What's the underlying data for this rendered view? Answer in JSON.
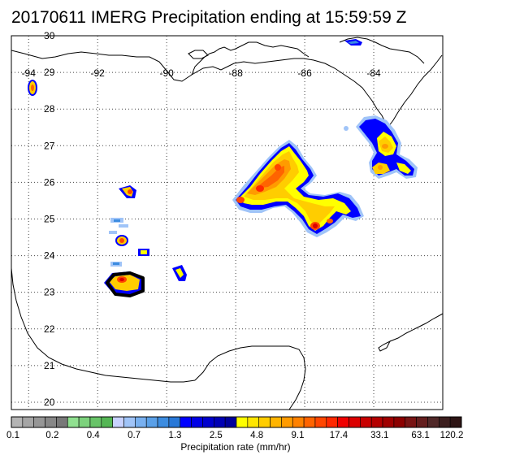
{
  "title": "20170611 IMERG Precipitation ending at 15:59:59 Z",
  "map": {
    "lon_range": [
      -94.5,
      -82
    ],
    "lat_range": [
      19.8,
      30
    ],
    "lon_ticks": [
      -94,
      -92,
      -90,
      -88,
      -86,
      -84
    ],
    "lat_ticks": [
      20,
      21,
      22,
      23,
      24,
      25,
      26,
      27,
      28,
      29,
      30
    ],
    "grid": "dotted",
    "layers": [
      "coastline",
      "precipitation"
    ]
  },
  "colorbar": {
    "title": "Precipitation rate (mm/hr)",
    "labels": [
      "0.1",
      "0.2",
      "0.4",
      "0.7",
      "1.3",
      "2.5",
      "4.8",
      "9.1",
      "17.4",
      "33.1",
      "63.1",
      "120.2"
    ],
    "colors": [
      "#b4b4b4",
      "#a5a5a5",
      "#969696",
      "#878787",
      "#787878",
      "#90e090",
      "#7cd27c",
      "#68c468",
      "#54b654",
      "#c8d2ff",
      "#a0c4f8",
      "#78b0f0",
      "#5aa0e8",
      "#3c8ce0",
      "#2878d8",
      "#0000ff",
      "#0000e6",
      "#0000cd",
      "#0000b4",
      "#00009b",
      "#ffff00",
      "#ffe600",
      "#ffcd00",
      "#ffb400",
      "#ff9b00",
      "#ff8200",
      "#ff6400",
      "#ff4600",
      "#ff2800",
      "#f00000",
      "#dc0000",
      "#c80000",
      "#b40000",
      "#a00000",
      "#8c0000",
      "#781414",
      "#641e1e",
      "#502828",
      "#3c1e1e",
      "#2d1414"
    ]
  }
}
